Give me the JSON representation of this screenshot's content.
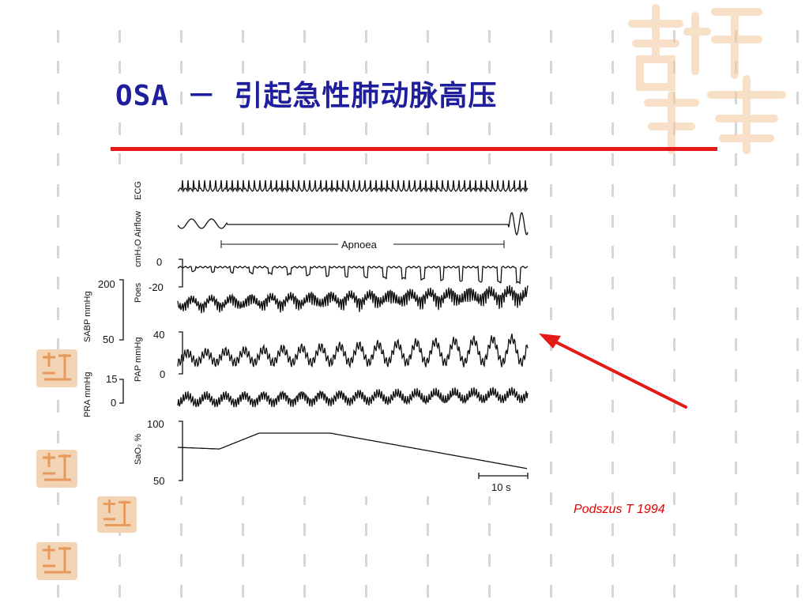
{
  "slide": {
    "title": "OSA － 引起急性肺动脉高压",
    "citation": "Podszus T  1994",
    "accent_color": "#e61919",
    "title_color": "#1f1f9e",
    "logo_mark": "吉祥意"
  },
  "figure": {
    "traces": [
      {
        "label": "ECG"
      },
      {
        "label": "cmH₂O Airflow"
      },
      {
        "label": "Poes",
        "ticks": [
          "0",
          "-20"
        ]
      },
      {
        "label": "SABP mmHg",
        "ticks": [
          "200",
          "50"
        ]
      },
      {
        "label": "PAP mmHg",
        "ticks": [
          "40",
          "0"
        ]
      },
      {
        "label": "PRA mmHg",
        "ticks": [
          "15",
          "0"
        ]
      },
      {
        "label": "SaO₂ %",
        "ticks": [
          "100",
          "50"
        ]
      }
    ],
    "apnoea_label": "Apnoea",
    "scale_bar_label": "10 s"
  }
}
